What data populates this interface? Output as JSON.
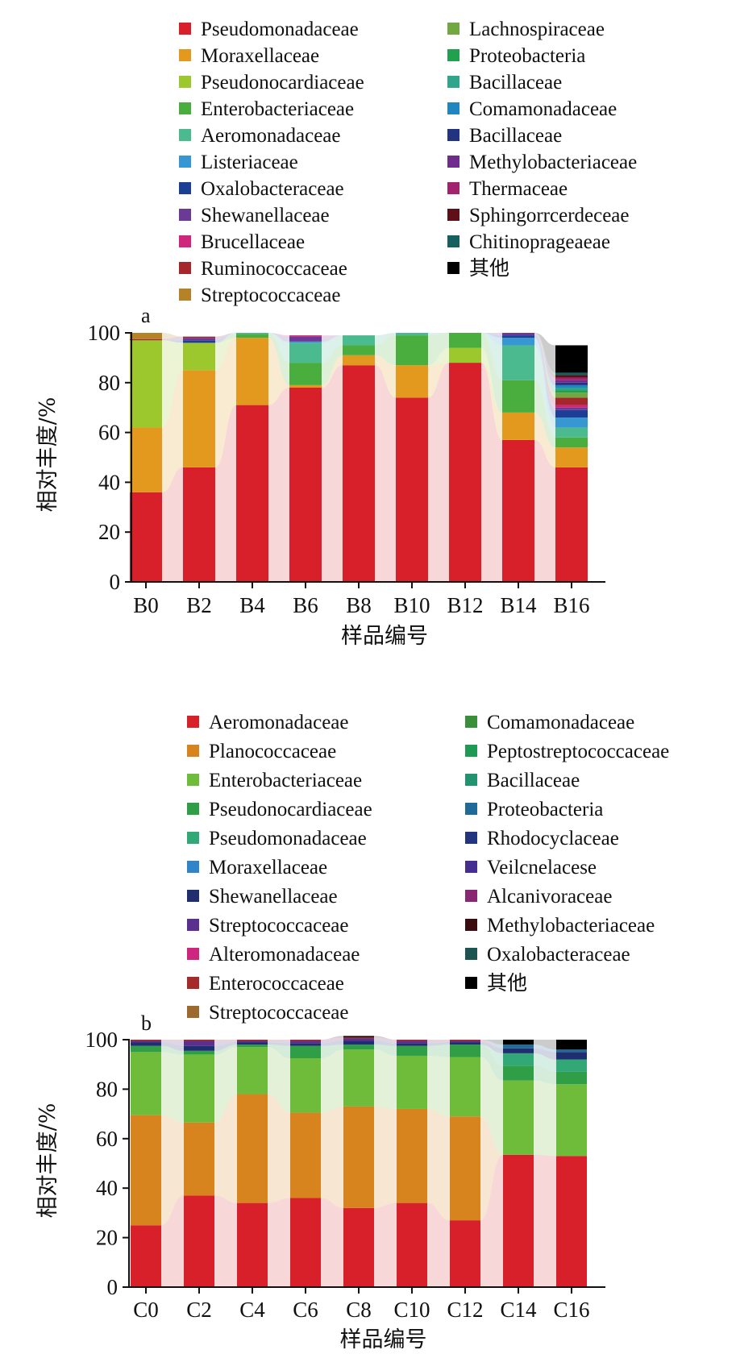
{
  "chart_data": [
    {
      "type": "bar",
      "stacked": true,
      "panel_label": "a",
      "xlabel": "样品编号",
      "ylabel": "相对丰度/%",
      "ylim": [
        0,
        100
      ],
      "yticks": [
        0,
        20,
        40,
        60,
        80,
        100
      ],
      "categories": [
        "B0",
        "B2",
        "B4",
        "B6",
        "B8",
        "B10",
        "B12",
        "B14",
        "B16"
      ],
      "legend_columns": 2,
      "series": [
        {
          "name": "Pseudomonadaceae",
          "color": "#d7202a",
          "values": [
            36,
            46,
            71,
            78,
            87,
            74,
            88,
            57,
            46
          ]
        },
        {
          "name": "Moraxellaceae",
          "color": "#e3991d",
          "values": [
            26,
            39,
            27,
            1,
            4,
            13,
            0,
            11,
            8
          ]
        },
        {
          "name": "Pseudonocardiaceae",
          "color": "#9dc82d",
          "values": [
            35,
            11,
            0,
            0,
            0,
            0,
            6,
            0,
            0
          ]
        },
        {
          "name": "Enterobacteriaceae",
          "color": "#4aae3f",
          "values": [
            0,
            0,
            1.5,
            9,
            4,
            12,
            6,
            13,
            4
          ]
        },
        {
          "name": "Aeromonadaceae",
          "color": "#4cba8f",
          "values": [
            0,
            0,
            0.5,
            8,
            4,
            1,
            0,
            14,
            4
          ]
        },
        {
          "name": "Listeriaceae",
          "color": "#3797d3",
          "values": [
            0,
            0,
            0,
            0.5,
            0,
            0,
            0,
            3,
            4
          ]
        },
        {
          "name": "Oxalobacteraceae",
          "color": "#1c3f95",
          "values": [
            0,
            1,
            0,
            0,
            0,
            0,
            0,
            1,
            3
          ]
        },
        {
          "name": "Shewanellaceae",
          "color": "#6a3a96",
          "values": [
            0,
            1,
            0,
            2,
            0,
            0,
            0,
            1,
            1
          ]
        },
        {
          "name": "Brucellaceae",
          "color": "#d0257d",
          "values": [
            0,
            0,
            0,
            0.5,
            0,
            0,
            0,
            0,
            1
          ]
        },
        {
          "name": "Ruminococcaceae",
          "color": "#a5272b",
          "values": [
            0.5,
            0.5,
            0,
            0,
            0,
            0,
            0,
            0,
            3
          ]
        },
        {
          "name": "Streptococcaceae",
          "color": "#b58228",
          "values": [
            2.5,
            0,
            0,
            0,
            0,
            0,
            0,
            0,
            0
          ]
        },
        {
          "name": "Lachnospiraceae",
          "color": "#72a841",
          "values": [
            0,
            0,
            0,
            0,
            0,
            0,
            0,
            0,
            2
          ]
        },
        {
          "name": "Proteobacteria",
          "color": "#21a14d",
          "values": [
            0,
            0,
            0,
            0,
            0,
            0,
            0,
            0,
            1
          ]
        },
        {
          "name": "Bacillaceae",
          "color": "#2fa58b",
          "values": [
            0,
            0,
            0,
            0,
            0,
            0,
            0,
            0,
            1
          ]
        },
        {
          "name": "Comamonadaceae",
          "color": "#1f86c1",
          "values": [
            0,
            0,
            0,
            0,
            0,
            0,
            0,
            0,
            1
          ]
        },
        {
          "name": "Bacillaceae",
          "color": "#223382",
          "values": [
            0,
            0,
            0,
            0,
            0,
            0,
            0,
            0,
            1
          ]
        },
        {
          "name": "Methylobacteriaceae",
          "color": "#6e2c8d",
          "values": [
            0,
            0,
            0,
            0,
            0,
            0,
            0,
            0,
            1
          ]
        },
        {
          "name": "Thermaceae",
          "color": "#a1236f",
          "values": [
            0,
            0,
            0,
            0,
            0,
            0,
            0,
            0,
            1
          ]
        },
        {
          "name": "Sphingorrcerdeceae",
          "color": "#5e0f17",
          "values": [
            0,
            0,
            0,
            0,
            0,
            0,
            0,
            0,
            1
          ]
        },
        {
          "name": "Chitinoprageaeae",
          "color": "#15605f",
          "values": [
            0,
            0,
            0,
            0,
            0,
            0,
            0,
            0,
            1
          ]
        },
        {
          "name": "其他",
          "color": "#000000",
          "values": [
            0,
            0,
            0,
            0,
            0,
            0,
            0,
            0,
            11
          ]
        }
      ]
    },
    {
      "type": "bar",
      "stacked": true,
      "panel_label": "b",
      "xlabel": "样品编号",
      "ylabel": "相对丰度/%",
      "ylim": [
        0,
        100
      ],
      "yticks": [
        0,
        20,
        40,
        60,
        80,
        100
      ],
      "categories": [
        "C0",
        "C2",
        "C4",
        "C6",
        "C8",
        "C10",
        "C12",
        "C14",
        "C16"
      ],
      "legend_columns": 2,
      "series": [
        {
          "name": "Aeromonadaceae",
          "color": "#d7202a",
          "values": [
            25,
            37,
            34,
            36,
            32,
            34,
            27,
            53.5,
            53
          ]
        },
        {
          "name": "Planococcaceae",
          "color": "#d7841f",
          "values": [
            44.5,
            29.5,
            44,
            34.5,
            41,
            38,
            42,
            0,
            0
          ]
        },
        {
          "name": "Enterobacteriaceae",
          "color": "#6fbb3a",
          "values": [
            25.5,
            27.5,
            19,
            22,
            23,
            21.5,
            24,
            30,
            29
          ]
        },
        {
          "name": "Pseudonocardiaceae",
          "color": "#2f9e46",
          "values": [
            2.5,
            1.5,
            1,
            5,
            2,
            4,
            5,
            6,
            5
          ]
        },
        {
          "name": "Pseudomonadaceae",
          "color": "#32a877",
          "values": [
            0,
            0,
            0,
            0,
            0,
            0,
            0,
            5,
            5
          ]
        },
        {
          "name": "Moraxellaceae",
          "color": "#2f85c8",
          "values": [
            0,
            0,
            0,
            0,
            0,
            0,
            0,
            0,
            0
          ]
        },
        {
          "name": "Shewanellaceae",
          "color": "#1e2e6f",
          "values": [
            1.5,
            2,
            1,
            1,
            1.5,
            1,
            1,
            2,
            3
          ]
        },
        {
          "name": "Streptococcaceae",
          "color": "#5a2f8e",
          "values": [
            0.5,
            2,
            0.5,
            1,
            1,
            1,
            0.5,
            0,
            0
          ]
        },
        {
          "name": "Alteromonadaceae",
          "color": "#ce257f",
          "values": [
            0,
            0,
            0,
            0,
            0,
            0,
            0,
            0,
            0
          ]
        },
        {
          "name": "Enterococcaceae",
          "color": "#a52a2a",
          "values": [
            0.5,
            0.5,
            0.5,
            0.5,
            0.5,
            0.5,
            0.5,
            0,
            0
          ]
        },
        {
          "name": "Streptococcaceae",
          "color": "#9b6a2c",
          "values": [
            0,
            0,
            0,
            0,
            0,
            0,
            0,
            0,
            0
          ]
        },
        {
          "name": "Comamonadaceae",
          "color": "#3a8f3a",
          "values": [
            0,
            0,
            0,
            0,
            0,
            0,
            0,
            0,
            0
          ]
        },
        {
          "name": "Peptostreptococcaceae",
          "color": "#1f9a55",
          "values": [
            0,
            0,
            0,
            0,
            0,
            0,
            0,
            0,
            0
          ]
        },
        {
          "name": "Bacillaceae",
          "color": "#22936f",
          "values": [
            0,
            0,
            0,
            0,
            0,
            0,
            0,
            0,
            0
          ]
        },
        {
          "name": "Proteobacteria",
          "color": "#206a9a",
          "values": [
            0,
            0,
            0,
            0,
            0,
            0,
            0,
            1.5,
            1
          ]
        },
        {
          "name": "Rhodocyclaceae",
          "color": "#243580",
          "values": [
            0,
            0,
            0,
            0,
            0,
            0,
            0,
            0,
            0
          ]
        },
        {
          "name": "Veilcnelacese",
          "color": "#452d91",
          "values": [
            0,
            0,
            0,
            0,
            0,
            0,
            0,
            0,
            0
          ]
        },
        {
          "name": "Alcanivoraceae",
          "color": "#892872",
          "values": [
            0,
            0,
            0,
            0,
            0,
            0,
            0,
            0,
            0
          ]
        },
        {
          "name": "Methylobacteriaceae",
          "color": "#3a0c10",
          "values": [
            0,
            0,
            0,
            0,
            0,
            0,
            0,
            0,
            0
          ]
        },
        {
          "name": "Oxalobacteraceae",
          "color": "#1b5450",
          "values": [
            0,
            0,
            0,
            0,
            0,
            0,
            0,
            0,
            0
          ]
        },
        {
          "name": "其他",
          "color": "#000000",
          "values": [
            0,
            0,
            0,
            0,
            0.5,
            0,
            0,
            2,
            4
          ]
        }
      ]
    }
  ]
}
